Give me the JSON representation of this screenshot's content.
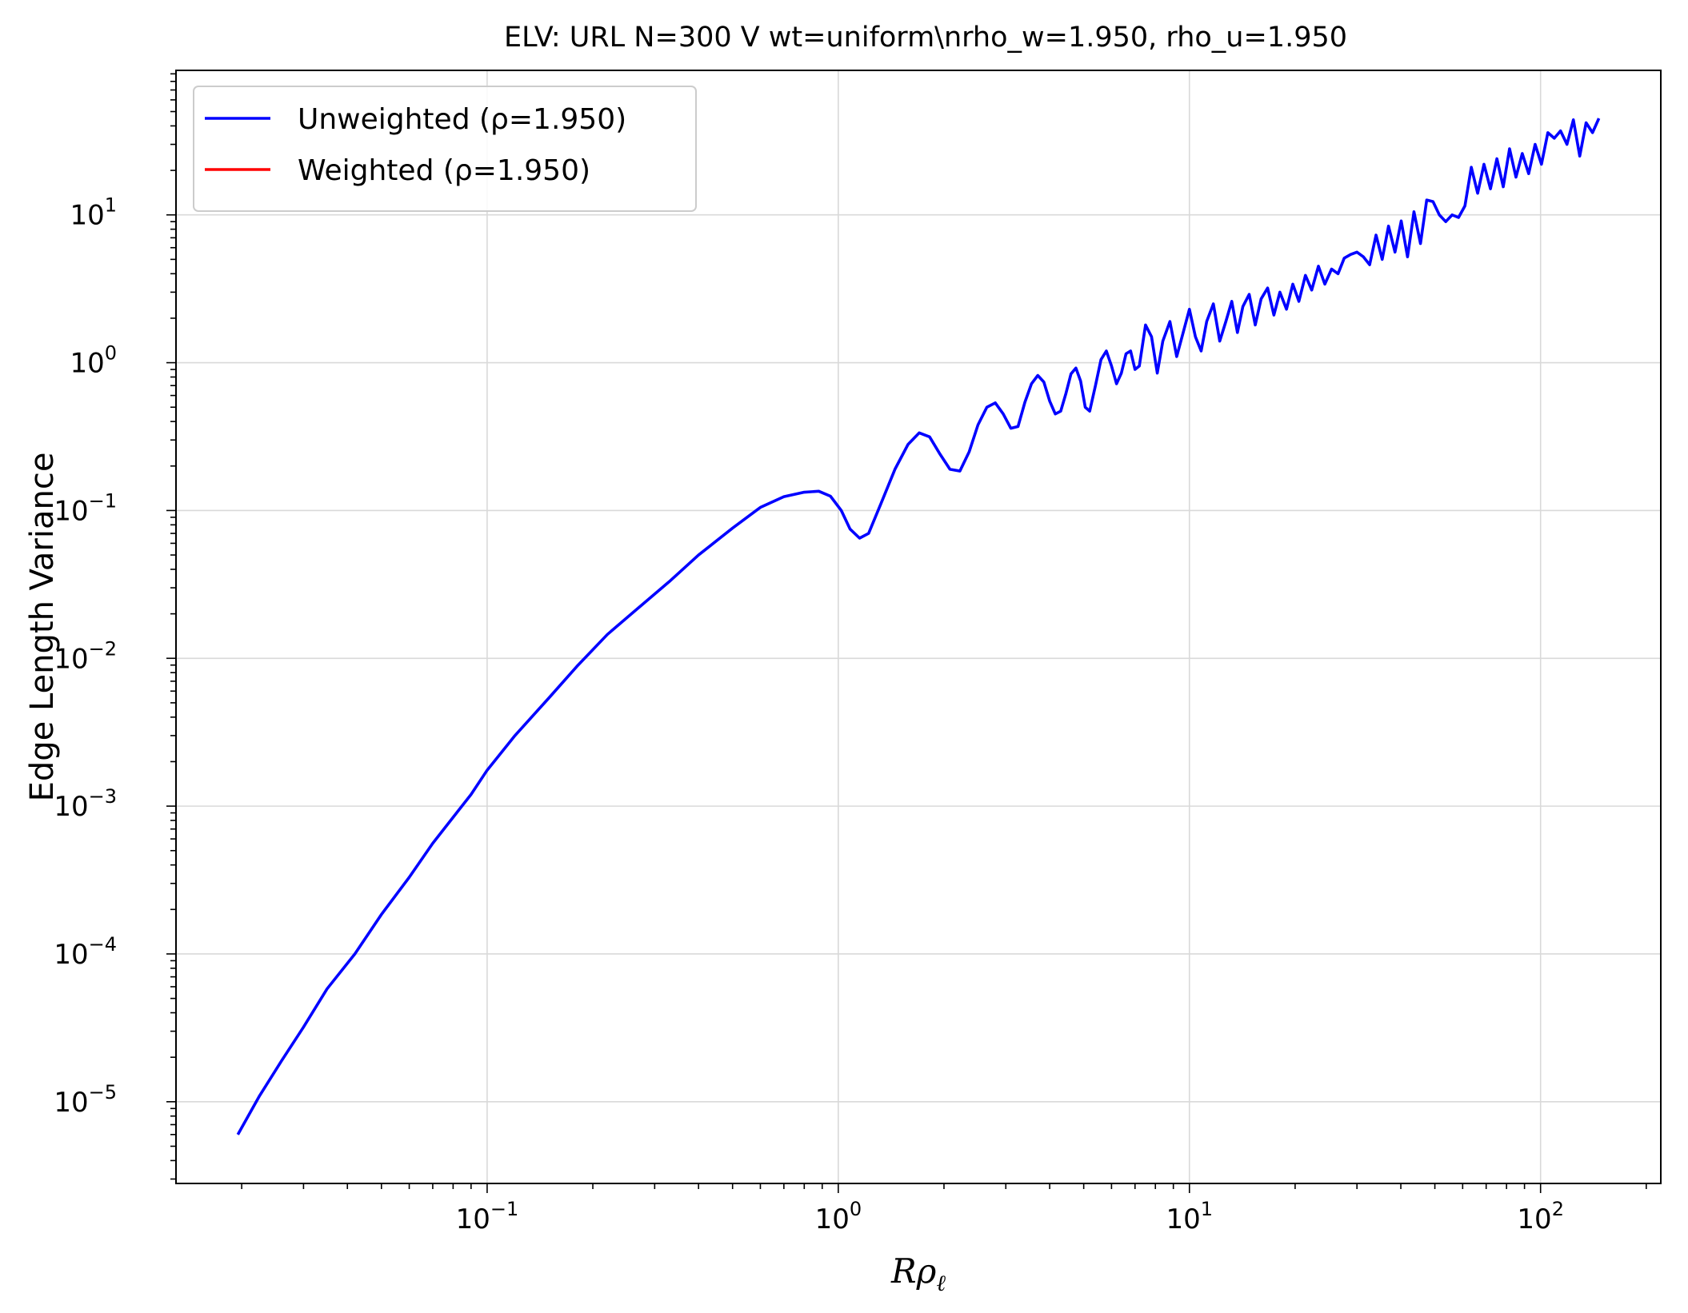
{
  "chart_data": {
    "type": "line",
    "title": "ELV: URL N=300 V wt=uniform\\nrho_w=1.950, rho_u=1.950",
    "xlabel_base": "R",
    "xlabel_greek": "ρ",
    "xlabel_sub": "ℓ",
    "ylabel": "Edge Length Variance",
    "xscale": "log",
    "yscale": "log",
    "xlim": [
      0.013,
      220
    ],
    "ylim": [
      2.8e-06,
      95
    ],
    "grid": true,
    "legend_position": "top-left",
    "x_ticks": [
      {
        "value": 0.1,
        "base": "10",
        "exp": "−1"
      },
      {
        "value": 1,
        "base": "10",
        "exp": "0"
      },
      {
        "value": 10,
        "base": "10",
        "exp": "1"
      },
      {
        "value": 100,
        "base": "10",
        "exp": "2"
      }
    ],
    "y_ticks": [
      {
        "value": 1e-05,
        "base": "10",
        "exp": "−5"
      },
      {
        "value": 0.0001,
        "base": "10",
        "exp": "−4"
      },
      {
        "value": 0.001,
        "base": "10",
        "exp": "−3"
      },
      {
        "value": 0.01,
        "base": "10",
        "exp": "−2"
      },
      {
        "value": 0.1,
        "base": "10",
        "exp": "−1"
      },
      {
        "value": 1,
        "base": "10",
        "exp": "0"
      },
      {
        "value": 10,
        "base": "10",
        "exp": "1"
      }
    ],
    "series": [
      {
        "name": "Unweighted (ρ=1.950)",
        "color": "#0000ff",
        "points": [
          [
            0.0195,
            6e-06
          ],
          [
            0.0225,
            1.1e-05
          ],
          [
            0.026,
            1.9e-05
          ],
          [
            0.03,
            3.2e-05
          ],
          [
            0.035,
            5.8e-05
          ],
          [
            0.042,
            0.0001
          ],
          [
            0.05,
            0.000185
          ],
          [
            0.06,
            0.00033
          ],
          [
            0.07,
            0.00056
          ],
          [
            0.08,
            0.00084
          ],
          [
            0.09,
            0.0012
          ],
          [
            0.1,
            0.00175
          ],
          [
            0.12,
            0.003
          ],
          [
            0.15,
            0.0054
          ],
          [
            0.18,
            0.0088
          ],
          [
            0.22,
            0.0145
          ],
          [
            0.27,
            0.022
          ],
          [
            0.33,
            0.033
          ],
          [
            0.4,
            0.05
          ],
          [
            0.5,
            0.076
          ],
          [
            0.6,
            0.105
          ],
          [
            0.7,
            0.124
          ],
          [
            0.8,
            0.133
          ],
          [
            0.88,
            0.135
          ],
          [
            0.95,
            0.125
          ],
          [
            1.02,
            0.1
          ],
          [
            1.08,
            0.075
          ],
          [
            1.15,
            0.065
          ],
          [
            1.22,
            0.07
          ],
          [
            1.32,
            0.11
          ],
          [
            1.45,
            0.19
          ],
          [
            1.58,
            0.28
          ],
          [
            1.7,
            0.335
          ],
          [
            1.82,
            0.315
          ],
          [
            1.95,
            0.24
          ],
          [
            2.08,
            0.19
          ],
          [
            2.22,
            0.185
          ],
          [
            2.36,
            0.25
          ],
          [
            2.5,
            0.38
          ],
          [
            2.65,
            0.5
          ],
          [
            2.8,
            0.535
          ],
          [
            2.95,
            0.45
          ],
          [
            3.1,
            0.36
          ],
          [
            3.25,
            0.37
          ],
          [
            3.4,
            0.54
          ],
          [
            3.55,
            0.72
          ],
          [
            3.7,
            0.82
          ],
          [
            3.85,
            0.74
          ],
          [
            4.0,
            0.55
          ],
          [
            4.15,
            0.45
          ],
          [
            4.3,
            0.47
          ],
          [
            4.45,
            0.62
          ],
          [
            4.6,
            0.84
          ],
          [
            4.75,
            0.92
          ],
          [
            4.9,
            0.75
          ],
          [
            5.05,
            0.5
          ],
          [
            5.2,
            0.47
          ],
          [
            5.4,
            0.7
          ],
          [
            5.6,
            1.05
          ],
          [
            5.8,
            1.2
          ],
          [
            6.0,
            0.95
          ],
          [
            6.2,
            0.72
          ],
          [
            6.4,
            0.85
          ],
          [
            6.6,
            1.15
          ],
          [
            6.8,
            1.2
          ],
          [
            7.0,
            0.9
          ],
          [
            7.2,
            0.95
          ],
          [
            7.5,
            1.8
          ],
          [
            7.8,
            1.5
          ],
          [
            8.1,
            0.85
          ],
          [
            8.4,
            1.4
          ],
          [
            8.8,
            1.9
          ],
          [
            9.2,
            1.1
          ],
          [
            9.6,
            1.6
          ],
          [
            10.0,
            2.3
          ],
          [
            10.4,
            1.5
          ],
          [
            10.8,
            1.2
          ],
          [
            11.2,
            1.9
          ],
          [
            11.7,
            2.5
          ],
          [
            12.2,
            1.4
          ],
          [
            12.7,
            1.9
          ],
          [
            13.2,
            2.6
          ],
          [
            13.7,
            1.6
          ],
          [
            14.2,
            2.4
          ],
          [
            14.8,
            2.9
          ],
          [
            15.4,
            1.8
          ],
          [
            16.0,
            2.7
          ],
          [
            16.7,
            3.2
          ],
          [
            17.4,
            2.1
          ],
          [
            18.1,
            3.0
          ],
          [
            18.9,
            2.3
          ],
          [
            19.7,
            3.4
          ],
          [
            20.5,
            2.6
          ],
          [
            21.4,
            3.9
          ],
          [
            22.3,
            3.1
          ],
          [
            23.3,
            4.5
          ],
          [
            24.3,
            3.4
          ],
          [
            25.4,
            4.3
          ],
          [
            26.5,
            4.0
          ],
          [
            27.6,
            5.1
          ],
          [
            28.8,
            5.4
          ],
          [
            30.0,
            5.6
          ],
          [
            31.3,
            5.2
          ],
          [
            32.6,
            4.6
          ],
          [
            34.0,
            7.3
          ],
          [
            35.4,
            5.0
          ],
          [
            36.9,
            8.4
          ],
          [
            38.5,
            5.6
          ],
          [
            40.1,
            9.1
          ],
          [
            41.8,
            5.2
          ],
          [
            43.6,
            10.5
          ],
          [
            45.5,
            6.4
          ],
          [
            47.4,
            12.6
          ],
          [
            49.4,
            12.3
          ],
          [
            51.5,
            10.0
          ],
          [
            53.7,
            9.0
          ],
          [
            56.0,
            10.0
          ],
          [
            58.4,
            9.6
          ],
          [
            60.9,
            11.5
          ],
          [
            63.5,
            21.0
          ],
          [
            66.2,
            14.0
          ],
          [
            69.0,
            22.0
          ],
          [
            72.0,
            15.0
          ],
          [
            75.1,
            24.0
          ],
          [
            78.3,
            15.5
          ],
          [
            81.6,
            28.0
          ],
          [
            85.1,
            18.0
          ],
          [
            88.7,
            26.0
          ],
          [
            92.5,
            19.0
          ],
          [
            96.5,
            30.0
          ],
          [
            100.6,
            22.0
          ],
          [
            104.9,
            36.0
          ],
          [
            109.4,
            33.0
          ],
          [
            114.0,
            37.0
          ],
          [
            118.9,
            30.0
          ],
          [
            124.0,
            44.0
          ],
          [
            129.3,
            25.0
          ],
          [
            134.8,
            42.0
          ],
          [
            140.6,
            36.0
          ],
          [
            146.6,
            45.0
          ]
        ]
      },
      {
        "name": "Weighted (ρ=1.950)",
        "color": "#ff0000",
        "points": []
      }
    ]
  }
}
